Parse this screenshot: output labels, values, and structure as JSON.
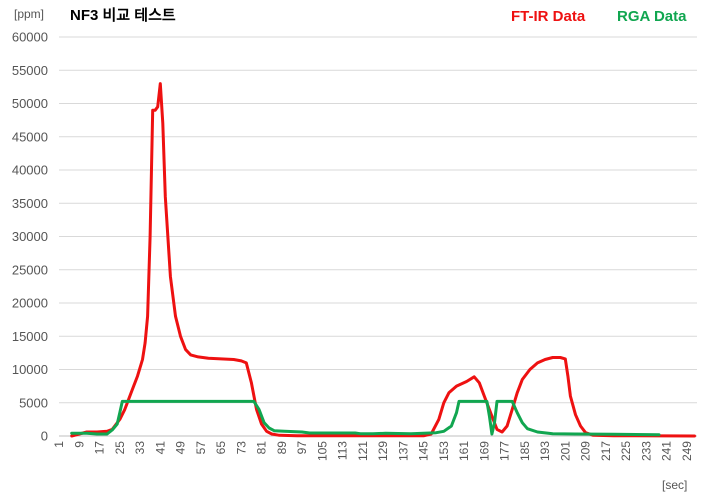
{
  "chart_data": {
    "type": "line",
    "title": "NF3 비교 테스트",
    "y_unit": "[ppm]",
    "x_unit": "[sec]",
    "ylim": [
      0,
      60000
    ],
    "y_ticks": [
      0,
      5000,
      10000,
      15000,
      20000,
      25000,
      30000,
      35000,
      40000,
      45000,
      50000,
      55000,
      60000
    ],
    "x_range": [
      1,
      253
    ],
    "x_tick_labels": [
      "1",
      "9",
      "17",
      "25",
      "33",
      "41",
      "49",
      "57",
      "65",
      "73",
      "81",
      "89",
      "97",
      "105",
      "113",
      "121",
      "129",
      "137",
      "145",
      "153",
      "161",
      "169",
      "177",
      "185",
      "193",
      "201",
      "209",
      "217",
      "225",
      "233",
      "241",
      "249"
    ],
    "grid": "horizontal",
    "legend_position": "top-right",
    "series": [
      {
        "name": "FT-IR Data",
        "color": "#ee1111",
        "points": [
          [
            6,
            0
          ],
          [
            9,
            300
          ],
          [
            12,
            600
          ],
          [
            16,
            600
          ],
          [
            20,
            700
          ],
          [
            22,
            1000
          ],
          [
            25,
            2500
          ],
          [
            27,
            4000
          ],
          [
            30,
            7000
          ],
          [
            32,
            9000
          ],
          [
            34,
            11500
          ],
          [
            35,
            14000
          ],
          [
            36,
            18000
          ],
          [
            37,
            30000
          ],
          [
            38,
            49000
          ],
          [
            39,
            49000
          ],
          [
            40,
            49500
          ],
          [
            41,
            53000
          ],
          [
            42,
            47000
          ],
          [
            43,
            36000
          ],
          [
            45,
            24000
          ],
          [
            47,
            18000
          ],
          [
            49,
            15000
          ],
          [
            51,
            13000
          ],
          [
            53,
            12200
          ],
          [
            56,
            11900
          ],
          [
            60,
            11700
          ],
          [
            70,
            11500
          ],
          [
            73,
            11300
          ],
          [
            75,
            11000
          ],
          [
            77,
            8000
          ],
          [
            79,
            4000
          ],
          [
            81,
            1800
          ],
          [
            83,
            700
          ],
          [
            85,
            300
          ],
          [
            88,
            100
          ],
          [
            95,
            50
          ],
          [
            145,
            30
          ],
          [
            148,
            300
          ],
          [
            151,
            2500
          ],
          [
            153,
            5000
          ],
          [
            155,
            6500
          ],
          [
            158,
            7500
          ],
          [
            162,
            8200
          ],
          [
            165,
            8900
          ],
          [
            167,
            8000
          ],
          [
            169,
            6000
          ],
          [
            172,
            3000
          ],
          [
            174,
            1000
          ],
          [
            176,
            600
          ],
          [
            178,
            1500
          ],
          [
            180,
            4000
          ],
          [
            182,
            6500
          ],
          [
            184,
            8500
          ],
          [
            187,
            10000
          ],
          [
            190,
            11000
          ],
          [
            193,
            11500
          ],
          [
            196,
            11800
          ],
          [
            199,
            11800
          ],
          [
            201,
            11600
          ],
          [
            202,
            9000
          ],
          [
            203,
            6000
          ],
          [
            205,
            3200
          ],
          [
            207,
            1500
          ],
          [
            209,
            500
          ],
          [
            212,
            100
          ],
          [
            220,
            50
          ],
          [
            252,
            0
          ]
        ]
      },
      {
        "name": "RGA Data",
        "color": "#11a650",
        "points": [
          [
            6,
            400
          ],
          [
            12,
            400
          ],
          [
            16,
            300
          ],
          [
            20,
            300
          ],
          [
            22,
            900
          ],
          [
            24,
            1800
          ],
          [
            25,
            3500
          ],
          [
            26,
            5200
          ],
          [
            78,
            5200
          ],
          [
            80,
            4000
          ],
          [
            82,
            2000
          ],
          [
            84,
            1200
          ],
          [
            86,
            800
          ],
          [
            90,
            700
          ],
          [
            97,
            600
          ],
          [
            100,
            450
          ],
          [
            110,
            450
          ],
          [
            118,
            450
          ],
          [
            120,
            350
          ],
          [
            125,
            350
          ],
          [
            130,
            400
          ],
          [
            140,
            350
          ],
          [
            150,
            500
          ],
          [
            153,
            700
          ],
          [
            156,
            1500
          ],
          [
            158,
            3500
          ],
          [
            159,
            5200
          ],
          [
            170,
            5200
          ],
          [
            171,
            3000
          ],
          [
            172,
            300
          ],
          [
            173,
            2000
          ],
          [
            174,
            5200
          ],
          [
            180,
            5200
          ],
          [
            182,
            3500
          ],
          [
            184,
            2000
          ],
          [
            186,
            1100
          ],
          [
            190,
            600
          ],
          [
            196,
            350
          ],
          [
            205,
            300
          ],
          [
            220,
            250
          ],
          [
            238,
            200
          ]
        ]
      }
    ]
  }
}
